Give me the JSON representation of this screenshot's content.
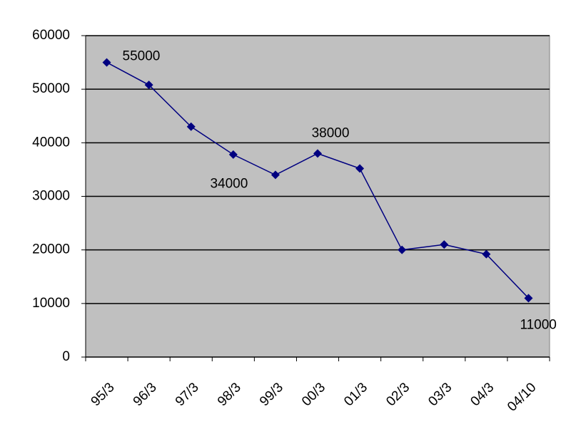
{
  "chart_data": {
    "type": "line",
    "categories": [
      "95/3",
      "96/3",
      "97/3",
      "98/3",
      "99/3",
      "00/3",
      "01/3",
      "02/3",
      "03/3",
      "04/3",
      "04/10"
    ],
    "series": [
      {
        "color": "#000080",
        "values": [
          55000,
          50800,
          43000,
          37800,
          34000,
          38000,
          35200,
          20000,
          21000,
          19200,
          11000
        ],
        "value_labels": [
          "55000",
          null,
          null,
          null,
          "34000",
          "38000",
          null,
          null,
          null,
          null,
          "11000"
        ]
      }
    ],
    "ylim": [
      0,
      60000
    ],
    "yticks": [
      0,
      10000,
      20000,
      30000,
      40000,
      50000,
      60000
    ],
    "grid": true,
    "plot_background": "#c0c0c0"
  }
}
